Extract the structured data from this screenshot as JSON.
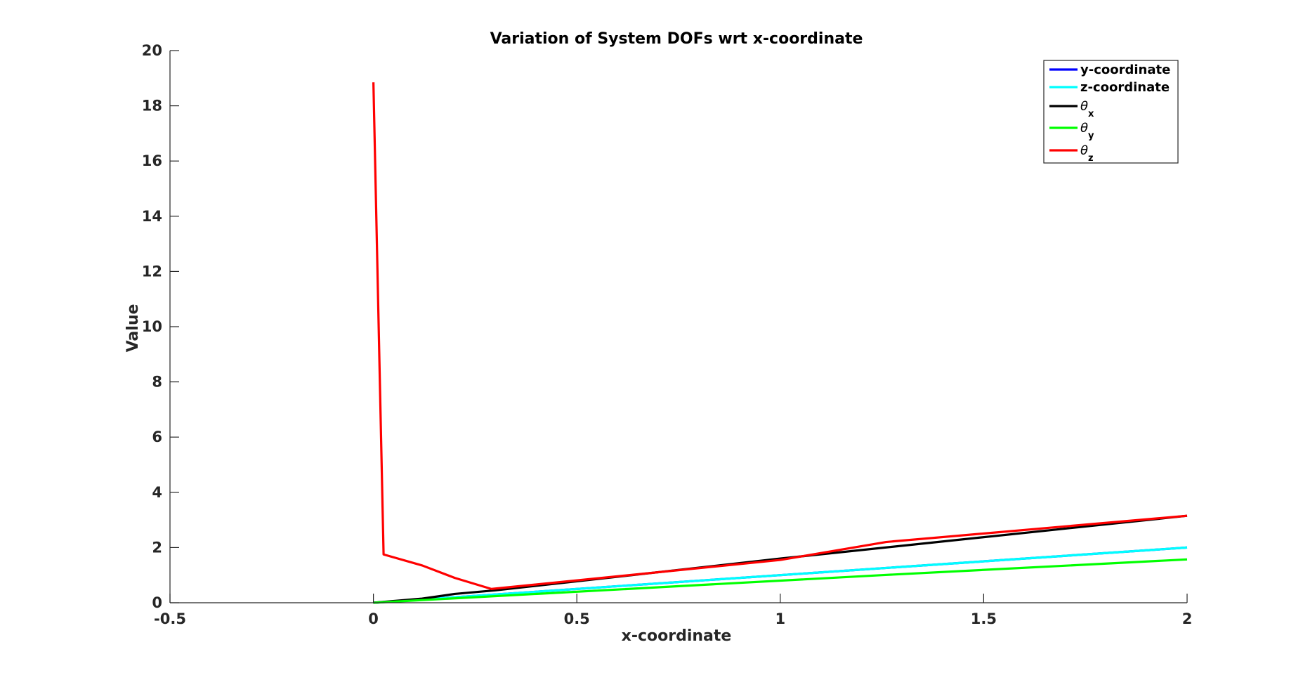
{
  "chart_data": {
    "type": "line",
    "title": "Variation of System DOFs wrt x-coordinate",
    "xlabel": "x-coordinate",
    "ylabel": "Value",
    "xlim": [
      -0.5,
      2
    ],
    "ylim": [
      0,
      20
    ],
    "xticks": [
      "-0.5",
      "0",
      "0.5",
      "1",
      "1.5",
      "2"
    ],
    "yticks": [
      "0",
      "2",
      "4",
      "6",
      "8",
      "10",
      "12",
      "14",
      "16",
      "18",
      "20"
    ],
    "grid": false,
    "legend_position": "top-right",
    "series": [
      {
        "name": "y-coordinate",
        "color": "#0000FF",
        "x": [
          0,
          2
        ],
        "y": [
          0,
          2.0
        ]
      },
      {
        "name": "z-coordinate",
        "color": "#00FFFF",
        "x": [
          0,
          2
        ],
        "y": [
          0,
          2.0
        ]
      },
      {
        "name": "θx",
        "name_base": "θ",
        "name_sub": "x",
        "color": "#000000",
        "x": [
          0,
          0.12,
          0.2,
          0.3,
          1.0,
          2.0
        ],
        "y": [
          0,
          0.15,
          0.32,
          0.45,
          1.6,
          3.15
        ]
      },
      {
        "name": "θy",
        "name_base": "θ",
        "name_sub": "y",
        "color": "#00FF00",
        "x": [
          0,
          1.25,
          2.0
        ],
        "y": [
          0,
          1.0,
          1.57
        ]
      },
      {
        "name": "θz",
        "name_base": "θ",
        "name_sub": "z",
        "color": "#FF0000",
        "x": [
          0,
          0.025,
          0.12,
          0.2,
          0.29,
          1.0,
          1.26,
          2.0
        ],
        "y": [
          18.85,
          1.75,
          1.35,
          0.9,
          0.5,
          1.55,
          2.2,
          3.15
        ]
      }
    ]
  }
}
